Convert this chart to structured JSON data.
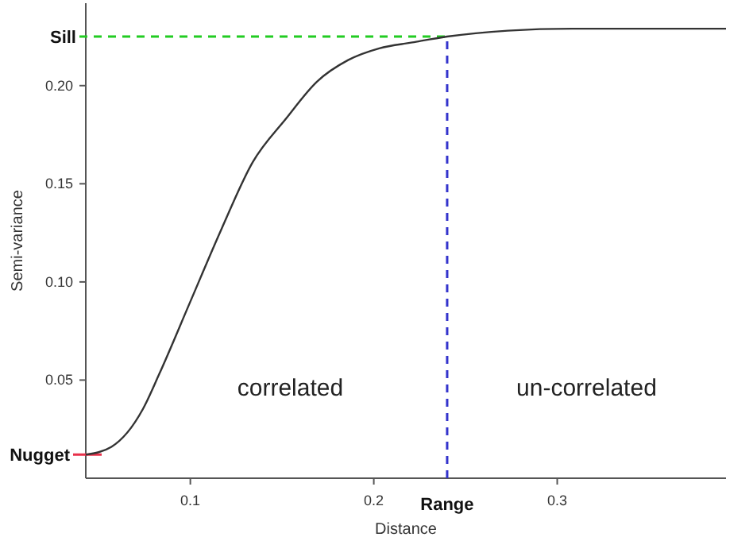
{
  "chart_data": {
    "type": "line",
    "xlabel": "Distance",
    "ylabel": "Semi-variance",
    "x": [
      0.043,
      0.057,
      0.074,
      0.083,
      0.1,
      0.117,
      0.134,
      0.152,
      0.169,
      0.186,
      0.203,
      0.221,
      0.24,
      0.273,
      0.308,
      0.392
    ],
    "series": [
      {
        "color": "#333333",
        "values": [
          0.012,
          0.016,
          0.035,
          0.053,
          0.09,
          0.127,
          0.161,
          0.183,
          0.202,
          0.213,
          0.219,
          0.222,
          0.225,
          0.228,
          0.229,
          0.229
        ]
      }
    ],
    "xlim": [
      0.043,
      0.392
    ],
    "ylim": [
      0,
      0.242
    ],
    "xticks": [
      0.1,
      0.2,
      0.3
    ],
    "yticks": [
      {
        "value": 0.05,
        "label": "0.05"
      },
      {
        "value": 0.1,
        "label": "0.10"
      },
      {
        "value": 0.15,
        "label": "0.15"
      },
      {
        "value": 0.2,
        "label": "0.20"
      }
    ],
    "ref_lines": [
      {
        "axis": "y",
        "value": 0.225,
        "label": "Sill",
        "color": "#22cc22",
        "line_style": "dashed"
      },
      {
        "axis": "x",
        "value": 0.24,
        "label": "Range",
        "color": "#3333cc",
        "line_style": "dashed"
      },
      {
        "axis": "y",
        "value": 0.012,
        "label": "Nugget",
        "color": "#e8304a",
        "line_style": "solid"
      }
    ],
    "annotations": [
      "correlated",
      "un-correlated"
    ],
    "grid": false,
    "marker": "none",
    "line_style": "solid"
  }
}
